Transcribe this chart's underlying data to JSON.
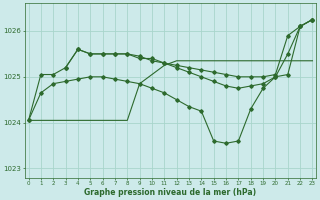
{
  "background_color": "#cdeaea",
  "grid_color": "#a8d5cc",
  "line_color": "#2d6a2d",
  "xlabel": "Graphe pression niveau de la mer (hPa)",
  "ylim": [
    1022.8,
    1026.6
  ],
  "yticks": [
    1023,
    1024,
    1025,
    1026
  ],
  "xlim": [
    -0.3,
    23.3
  ],
  "xticks": [
    0,
    1,
    2,
    3,
    4,
    5,
    6,
    7,
    8,
    9,
    10,
    11,
    12,
    13,
    14,
    15,
    16,
    17,
    18,
    19,
    20,
    21,
    22,
    23
  ],
  "series1_x": [
    0,
    1,
    2,
    3,
    4,
    5,
    6,
    7,
    8,
    9,
    10,
    11,
    12,
    13,
    14,
    15,
    16,
    17,
    18,
    19,
    20,
    21,
    22,
    23
  ],
  "series1_y": [
    1024.05,
    1024.05,
    1024.05,
    1024.05,
    1024.05,
    1024.05,
    1024.05,
    1024.05,
    1024.05,
    1024.85,
    1025.05,
    1025.25,
    1025.35,
    1025.35,
    1025.35,
    1025.35,
    1025.35,
    1025.35,
    1025.35,
    1025.35,
    1025.35,
    1025.35,
    1025.35,
    1025.35
  ],
  "series2_x": [
    0,
    1,
    2,
    3,
    4,
    5,
    6,
    7,
    8,
    9,
    10,
    11,
    12,
    13,
    14,
    15,
    16,
    17,
    18,
    19,
    20,
    21,
    22,
    23
  ],
  "series2_y": [
    1024.05,
    1025.05,
    1025.05,
    1025.2,
    1025.6,
    1025.5,
    1025.5,
    1025.5,
    1025.5,
    1025.45,
    1025.35,
    1025.3,
    1025.25,
    1025.2,
    1025.15,
    1025.1,
    1025.05,
    1025.0,
    1025.0,
    1025.0,
    1025.05,
    1025.9,
    1026.1,
    1026.25
  ],
  "series3_x": [
    3,
    4,
    5,
    6,
    7,
    8,
    9,
    10,
    11,
    12,
    13,
    14,
    15,
    16,
    17,
    18,
    19,
    20,
    21,
    22,
    23
  ],
  "series3_y": [
    1025.2,
    1025.6,
    1025.5,
    1025.5,
    1025.5,
    1025.5,
    1025.4,
    1025.4,
    1025.3,
    1025.2,
    1025.1,
    1025.0,
    1024.9,
    1024.8,
    1024.75,
    1024.8,
    1024.85,
    1025.0,
    1025.5,
    1026.1,
    1026.25
  ],
  "series4_x": [
    0,
    1,
    2,
    3,
    4,
    5,
    6,
    7,
    8,
    9,
    10,
    11,
    12,
    13,
    14,
    15,
    16,
    17,
    18,
    19,
    20,
    21,
    22,
    23
  ],
  "series4_y": [
    1024.05,
    1024.65,
    1024.85,
    1024.9,
    1024.95,
    1025.0,
    1025.0,
    1024.95,
    1024.9,
    1024.85,
    1024.75,
    1024.65,
    1024.5,
    1024.35,
    1024.25,
    1023.6,
    1023.55,
    1023.6,
    1024.3,
    1024.75,
    1025.0,
    1025.05,
    1026.1,
    1026.25
  ]
}
